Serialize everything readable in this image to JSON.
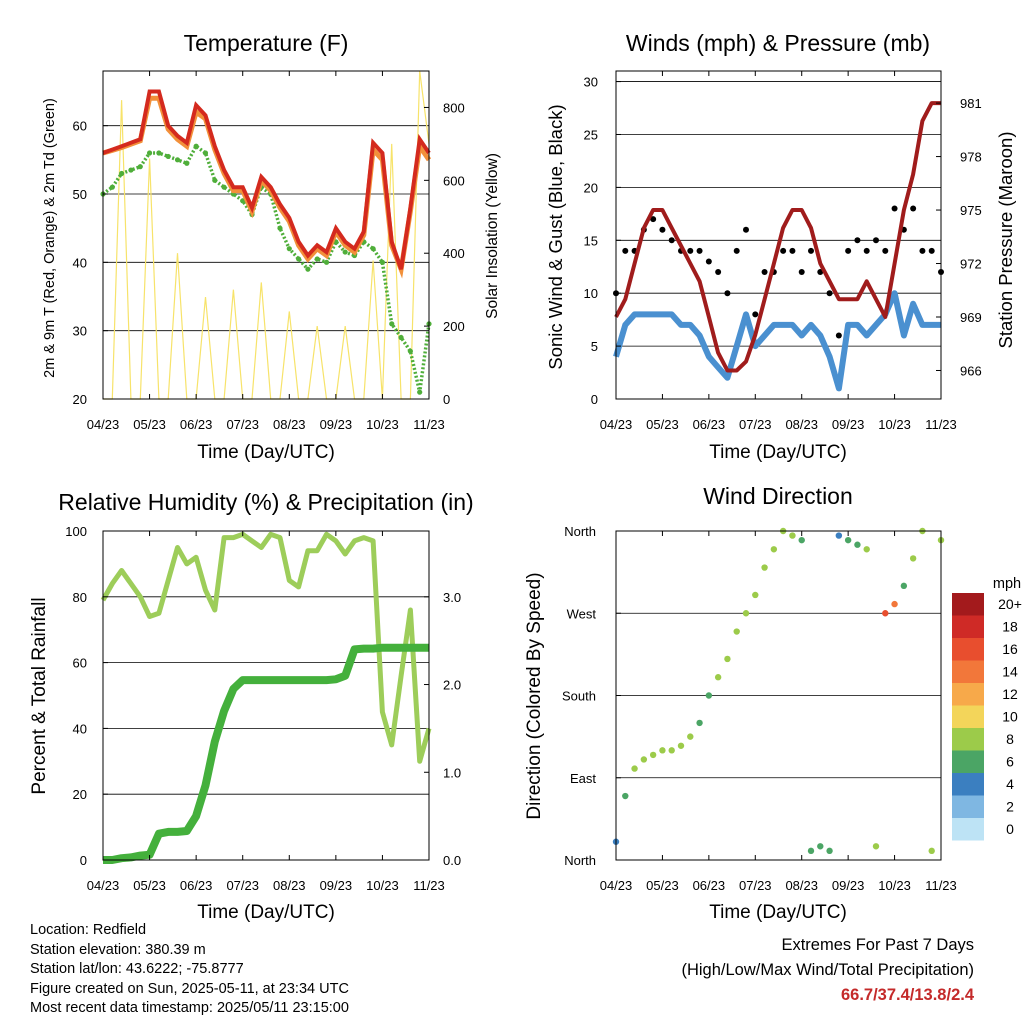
{
  "x_ticks": [
    "04/23",
    "05/23",
    "06/23",
    "07/23",
    "08/23",
    "09/23",
    "10/23",
    "11/23"
  ],
  "panels": {
    "temperature": {
      "title": "Temperature (F)",
      "xlabel": "Time (Day/UTC)",
      "ylabel": "2m & 9m T (Red, Orange) & 2m Td (Green)",
      "ylabel_right": "Solar Insolation (Yellow)",
      "y_ticks": [
        "20",
        "30",
        "40",
        "50",
        "60"
      ],
      "y_ticks_right": [
        "0",
        "200",
        "400",
        "600",
        "800"
      ]
    },
    "winds": {
      "title": "Winds (mph) & Pressure (mb)",
      "xlabel": "Time (Day/UTC)",
      "ylabel": "Sonic Wind & Gust (Blue, Black)",
      "ylabel_right": "Station Pressure (Maroon)",
      "y_ticks": [
        "0",
        "5",
        "10",
        "15",
        "20",
        "25",
        "30"
      ],
      "y_ticks_right": [
        "966",
        "969",
        "972",
        "975",
        "978",
        "981"
      ]
    },
    "humidity": {
      "title": "Relative Humidity (%) & Precipitation (in)",
      "xlabel": "Time (Day/UTC)",
      "ylabel": "Percent & Total Rainfall",
      "y_ticks": [
        "0",
        "20",
        "40",
        "60",
        "80",
        "100"
      ],
      "y_ticks_right": [
        "0.0",
        "1.0",
        "2.0",
        "3.0"
      ]
    },
    "direction": {
      "title": "Wind Direction",
      "xlabel": "Time (Day/UTC)",
      "ylabel": "Direction (Colored By Speed)",
      "y_ticks": [
        "North",
        "East",
        "South",
        "West",
        "North"
      ],
      "colorbar_title": "mph",
      "colorbar_labels": [
        "20+",
        "18",
        "16",
        "14",
        "12",
        "10",
        "8",
        "6",
        "4",
        "2",
        "0"
      ],
      "colorbar_colors": [
        "#a31a1c",
        "#cf2a26",
        "#e84e2e",
        "#f2773a",
        "#f7a94a",
        "#f3d55a",
        "#9ccb4a",
        "#4ba565",
        "#3b7fc0",
        "#7fb7e2",
        "#bde3f5"
      ]
    }
  },
  "footer": {
    "location": "Location: Redfield",
    "elevation": "Station elevation: 380.39 m",
    "latlon": "Station lat/lon: 43.6222; -75.8777",
    "created": "Figure created on Sun, 2025-05-11, at 23:34 UTC",
    "timestamp": "Most recent data timestamp: 2025/05/11 23:15:00",
    "extremes_title": "Extremes For Past 7 Days",
    "extremes_subtitle": "(High/Low/Max Wind/Total Precipitation)",
    "extremes_values": "66.7/37.4/13.8/2.4"
  },
  "chart_data": [
    {
      "type": "line",
      "title": "Temperature (F)",
      "xlabel": "Time (Day/UTC)",
      "ylabel": "2m & 9m T (Red, Orange) & 2m Td (Green)",
      "ylabel_right": "Solar Insolation (Yellow)",
      "x": [
        0,
        0.2,
        0.4,
        0.6,
        0.8,
        1.0,
        1.2,
        1.4,
        1.6,
        1.8,
        2.0,
        2.2,
        2.4,
        2.6,
        2.8,
        3.0,
        3.2,
        3.4,
        3.6,
        3.8,
        4.0,
        4.2,
        4.4,
        4.6,
        4.8,
        5.0,
        5.2,
        5.4,
        5.6,
        5.8,
        6.0,
        6.2,
        6.4,
        6.6,
        6.8,
        7.0
      ],
      "ylim": [
        20,
        68
      ],
      "ylim_right": [
        0,
        900
      ],
      "series": [
        {
          "name": "2m T",
          "color": "#d42a1e",
          "values": [
            56,
            56.5,
            57,
            57.5,
            58,
            65,
            65,
            60,
            58.5,
            57.5,
            63,
            61.5,
            57,
            53.5,
            51,
            51,
            48,
            52.5,
            51,
            48.5,
            46.5,
            43,
            41,
            42.5,
            41.5,
            45,
            43,
            42,
            44.5,
            57.5,
            56,
            43,
            39,
            48,
            58,
            56
          ]
        },
        {
          "name": "9m T",
          "color": "#f2903a",
          "values": [
            56,
            56.4,
            56.8,
            57.3,
            57.8,
            64,
            64,
            59.5,
            58,
            57,
            62,
            61,
            56.5,
            53,
            50.5,
            50.5,
            47.5,
            52,
            50.5,
            48,
            46,
            42.5,
            40.5,
            42,
            41,
            44.5,
            42.5,
            41.5,
            44,
            56.5,
            55,
            42.5,
            39,
            47.5,
            57,
            55
          ]
        },
        {
          "name": "2m Td",
          "color": "#4fae3a",
          "values": [
            50,
            51,
            53,
            53.5,
            54,
            56,
            56,
            55.5,
            55,
            54.5,
            57,
            56,
            52,
            51,
            50,
            49,
            47,
            51,
            50,
            45,
            42,
            40.5,
            39,
            40.5,
            40,
            43,
            41.5,
            41,
            43,
            42,
            40,
            31,
            29,
            27,
            21,
            31
          ]
        },
        {
          "name": "Solar Insolation",
          "color": "#f7e36a",
          "values": [
            0,
            0,
            820,
            0,
            0,
            660,
            0,
            0,
            400,
            0,
            0,
            280,
            0,
            0,
            300,
            0,
            0,
            320,
            0,
            0,
            240,
            0,
            0,
            200,
            0,
            0,
            200,
            0,
            0,
            380,
            0,
            700,
            0,
            0,
            900,
            700
          ]
        }
      ]
    },
    {
      "type": "line",
      "title": "Winds (mph) & Pressure (mb)",
      "xlabel": "Time (Day/UTC)",
      "ylabel": "Sonic Wind & Gust (Blue, Black)",
      "ylabel_right": "Station Pressure (Maroon)",
      "x": [
        0,
        0.2,
        0.4,
        0.6,
        0.8,
        1.0,
        1.2,
        1.4,
        1.6,
        1.8,
        2.0,
        2.2,
        2.4,
        2.6,
        2.8,
        3.0,
        3.2,
        3.4,
        3.6,
        3.8,
        4.0,
        4.2,
        4.4,
        4.6,
        4.8,
        5.0,
        5.2,
        5.4,
        5.6,
        5.8,
        6.0,
        6.2,
        6.4,
        6.6,
        6.8,
        7.0
      ],
      "ylim": [
        0,
        31
      ],
      "ylim_right": [
        964.4,
        982.8
      ],
      "series": [
        {
          "name": "Gust",
          "color": "#000000",
          "values": [
            10,
            14,
            14,
            16,
            17,
            16,
            15,
            14,
            14,
            14,
            13,
            12,
            10,
            14,
            16,
            8,
            12,
            12,
            14,
            14,
            12,
            14,
            12,
            10,
            6,
            14,
            15,
            14,
            15,
            14,
            18,
            16,
            18,
            14,
            14,
            12
          ]
        },
        {
          "name": "Sonic Wind",
          "color": "#4a90d0",
          "values": [
            4,
            7,
            8,
            8,
            8,
            8,
            8,
            7,
            7,
            6,
            4,
            3,
            2,
            5,
            8,
            5,
            6,
            7,
            7,
            7,
            6,
            7,
            6,
            4,
            1,
            7,
            7,
            6,
            7,
            8,
            10,
            6,
            9,
            7,
            7,
            7
          ]
        },
        {
          "name": "Station Pressure",
          "color": "#a01c1c",
          "values": [
            969,
            970,
            972,
            974,
            975,
            975,
            974,
            973,
            972,
            971,
            969,
            967,
            966,
            966,
            966.5,
            968,
            970,
            972,
            974,
            975,
            975,
            974,
            972,
            971,
            970,
            970,
            970,
            971,
            970,
            969,
            972,
            975,
            977,
            980,
            981,
            981
          ]
        }
      ]
    },
    {
      "type": "line",
      "title": "Relative Humidity (%) & Precipitation (in)",
      "xlabel": "Time (Day/UTC)",
      "ylabel": "Percent & Total Rainfall",
      "x": [
        0,
        0.2,
        0.4,
        0.6,
        0.8,
        1.0,
        1.2,
        1.4,
        1.6,
        1.8,
        2.0,
        2.2,
        2.4,
        2.6,
        2.8,
        3.0,
        3.2,
        3.4,
        3.6,
        3.8,
        4.0,
        4.2,
        4.4,
        4.6,
        4.8,
        5.0,
        5.2,
        5.4,
        5.6,
        5.8,
        6.0,
        6.2,
        6.4,
        6.6,
        6.8,
        7.0
      ],
      "ylim": [
        0,
        100
      ],
      "ylim_right": [
        0.0,
        3.75
      ],
      "series": [
        {
          "name": "Relative Humidity",
          "color": "#9dcd5a",
          "values": [
            79,
            84,
            88,
            84,
            80,
            74,
            75,
            85,
            95,
            90,
            92,
            82,
            76,
            98,
            98,
            99,
            97,
            95,
            99,
            98,
            85,
            83,
            94,
            94,
            99,
            97,
            93,
            97,
            98,
            97,
            45,
            35,
            56,
            76,
            30,
            40
          ]
        },
        {
          "name": "Total Rainfall",
          "color": "#44b03c",
          "values": [
            0,
            0,
            0.02,
            0.03,
            0.05,
            0.06,
            0.3,
            0.32,
            0.32,
            0.33,
            0.5,
            0.85,
            1.35,
            1.7,
            1.95,
            2.05,
            2.05,
            2.05,
            2.05,
            2.05,
            2.05,
            2.05,
            2.05,
            2.05,
            2.05,
            2.06,
            2.1,
            2.4,
            2.41,
            2.41,
            2.42,
            2.42,
            2.42,
            2.42,
            2.42,
            2.42
          ]
        }
      ]
    },
    {
      "type": "scatter",
      "title": "Wind Direction",
      "xlabel": "Time (Day/UTC)",
      "ylabel": "Direction (Colored By Speed)",
      "y_categories": [
        "North",
        "East",
        "South",
        "West",
        "North"
      ],
      "x": [
        0,
        0.2,
        0.4,
        0.6,
        0.8,
        1.0,
        1.2,
        1.4,
        1.6,
        1.8,
        2.0,
        2.2,
        2.4,
        2.6,
        2.8,
        3.0,
        3.2,
        3.4,
        3.6,
        3.8,
        4.0,
        4.2,
        4.4,
        4.6,
        4.8,
        5.0,
        5.2,
        5.4,
        5.6,
        5.8,
        6.0,
        6.2,
        6.4,
        6.6,
        6.8,
        7.0
      ],
      "series": [
        {
          "name": "Direction (deg)",
          "values": [
            20,
            70,
            100,
            110,
            115,
            120,
            120,
            125,
            135,
            150,
            180,
            200,
            220,
            250,
            270,
            290,
            320,
            340,
            360,
            355,
            350,
            10,
            15,
            10,
            355,
            350,
            345,
            340,
            15,
            270,
            280,
            300,
            330,
            360,
            10,
            350
          ]
        },
        {
          "name": "Speed (mph)",
          "values": [
            3,
            5,
            7,
            8,
            8,
            8,
            8,
            7,
            7,
            6,
            6,
            8,
            8,
            8,
            8,
            8,
            8,
            8,
            8,
            8,
            6,
            6,
            5,
            5,
            4,
            5,
            6,
            8,
            8,
            16,
            14,
            6,
            8,
            8,
            8,
            8
          ]
        }
      ]
    }
  ]
}
